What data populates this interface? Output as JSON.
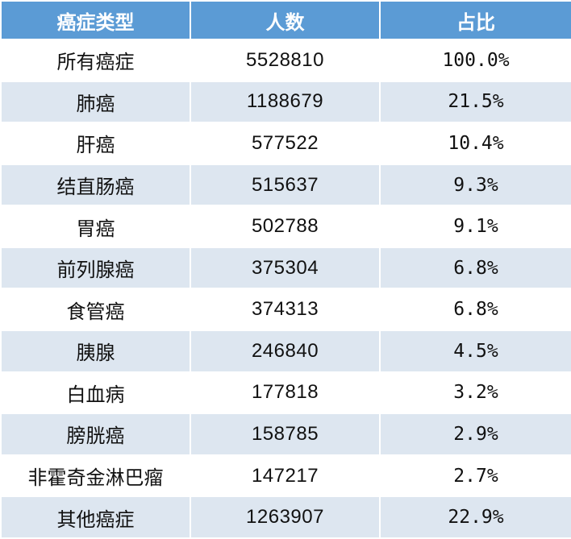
{
  "table": {
    "header": [
      "癌症类型",
      "人数",
      "占比"
    ],
    "rows": [
      [
        "所有癌症",
        "5528810",
        "100.0%"
      ],
      [
        "肺癌",
        "1188679",
        "21.5%"
      ],
      [
        "肝癌",
        "577522",
        "10.4%"
      ],
      [
        "结直肠癌",
        "515637",
        "9.3%"
      ],
      [
        "胃癌",
        "502788",
        "9.1%"
      ],
      [
        "前列腺癌",
        "375304",
        "6.8%"
      ],
      [
        "食管癌",
        "374313",
        "6.8%"
      ],
      [
        "胰腺",
        "246840",
        "4.5%"
      ],
      [
        "白血病",
        "177818",
        "3.2%"
      ],
      [
        "膀胱癌",
        "158785",
        "2.9%"
      ],
      [
        "非霍奇金淋巴瘤",
        "147217",
        "2.7%"
      ],
      [
        "其他癌症",
        "1263907",
        "22.9%"
      ]
    ]
  }
}
